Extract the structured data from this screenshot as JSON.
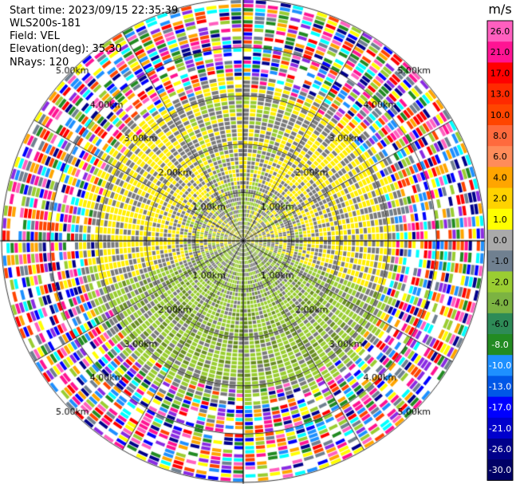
{
  "header": {
    "start_time": "Start time: 2023/09/15 22:35:39",
    "instrument": "WLS200s-181",
    "field": "Field: VEL",
    "elevation": "Elevation(deg): 35.30",
    "nrays": "NRays: 120"
  },
  "colorbar": {
    "unit": "m/s",
    "ticks": [
      "26.0",
      "21.0",
      "17.0",
      "13.0",
      "10.0",
      "8.0",
      "6.0",
      "4.0",
      "2.0",
      "1.0",
      "0.0",
      "-1.0",
      "-2.0",
      "-4.0",
      "-6.0",
      "-8.0",
      "-10.0",
      "-13.0",
      "-17.0",
      "-21.0",
      "-26.0",
      "-30.0"
    ],
    "colors": [
      "#ff5fbf",
      "#ff1493",
      "#ff0000",
      "#ff2a00",
      "#ff4500",
      "#ff6a3d",
      "#ff8c5a",
      "#ffa500",
      "#ffd200",
      "#ffff00",
      "#aaaaaa",
      "#708090",
      "#9acd32",
      "#7cb342",
      "#2e8b57",
      "#228b22",
      "#1e90ff",
      "#0057e7",
      "#0000ff",
      "#0000cd",
      "#00008b",
      "#000066"
    ]
  },
  "chart_data": {
    "type": "ppi",
    "field": "VEL",
    "units": "m/s",
    "nrays": 120,
    "range_rings_km": [
      1.0,
      2.0,
      3.0,
      4.0,
      5.0
    ],
    "ring_labels": [
      "1.00km",
      "2.00km",
      "3.00km",
      "4.00km",
      "5.00km"
    ],
    "max_range_km": 5.0,
    "spoke_angles_deg": [
      0,
      30,
      60,
      90,
      120,
      150,
      180,
      210,
      240,
      270,
      300,
      330
    ],
    "cmap_min": -30.0,
    "cmap_max": 26.0
  }
}
